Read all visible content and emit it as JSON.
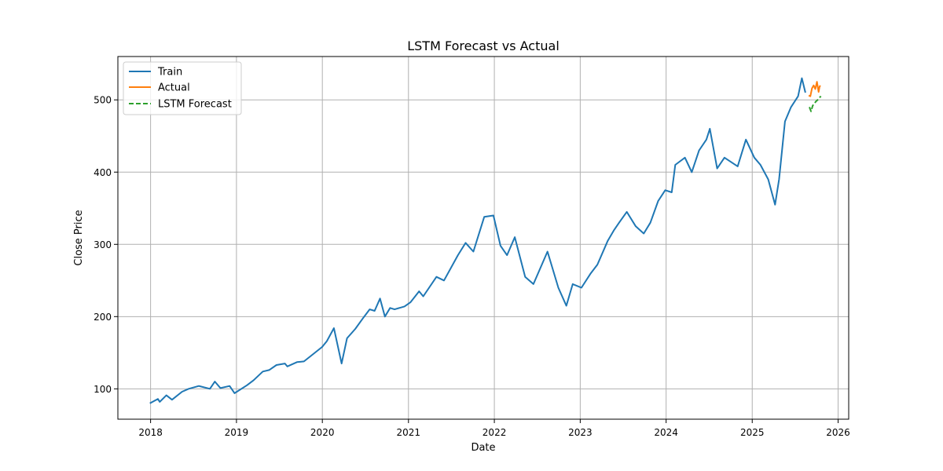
{
  "chart_data": {
    "type": "line",
    "title": "LSTM Forecast vs Actual",
    "xlabel": "Date",
    "ylabel": "Close Price",
    "x_axis": {
      "type": "date",
      "range": [
        "2017-08-15",
        "2026-02-15"
      ],
      "tick_labels": [
        "2018",
        "2019",
        "2020",
        "2021",
        "2022",
        "2023",
        "2024",
        "2025",
        "2026"
      ],
      "tick_dates": [
        "2018-01-01",
        "2019-01-01",
        "2020-01-01",
        "2021-01-01",
        "2022-01-01",
        "2023-01-01",
        "2024-01-01",
        "2025-01-01",
        "2026-01-01"
      ]
    },
    "y_axis": {
      "range": [
        58,
        560
      ],
      "ticks": [
        100,
        200,
        300,
        400,
        500
      ],
      "tick_labels": [
        "100",
        "200",
        "300",
        "400",
        "500"
      ]
    },
    "grid": true,
    "legend": {
      "placement": "top-left",
      "entries": [
        {
          "label": "Train",
          "color": "#1f77b4",
          "style": "solid"
        },
        {
          "label": "Actual",
          "color": "#ff7f0e",
          "style": "solid"
        },
        {
          "label": "LSTM Forecast",
          "color": "#2ca02c",
          "style": "dashed"
        }
      ]
    },
    "series": [
      {
        "name": "Train",
        "color": "#1f77b4",
        "style": "solid",
        "x": [
          "2017-12-29",
          "2018-02-01",
          "2018-02-09",
          "2018-03-09",
          "2018-04-02",
          "2018-05-15",
          "2018-06-12",
          "2018-07-25",
          "2018-09-10",
          "2018-10-01",
          "2018-10-25",
          "2018-12-03",
          "2018-12-24",
          "2019-02-15",
          "2019-03-15",
          "2019-04-23",
          "2019-05-20",
          "2019-06-20",
          "2019-07-26",
          "2019-08-05",
          "2019-09-15",
          "2019-10-15",
          "2019-11-15",
          "2019-12-31",
          "2020-01-20",
          "2020-02-19",
          "2020-03-23",
          "2020-04-15",
          "2020-05-20",
          "2020-06-20",
          "2020-07-20",
          "2020-08-10",
          "2020-09-02",
          "2020-09-23",
          "2020-10-15",
          "2020-11-03",
          "2020-12-15",
          "2021-01-10",
          "2021-02-15",
          "2021-03-05",
          "2021-04-30",
          "2021-06-01",
          "2021-07-30",
          "2021-09-01",
          "2021-10-04",
          "2021-11-19",
          "2021-12-28",
          "2022-01-27",
          "2022-02-24",
          "2022-03-29",
          "2022-05-12",
          "2022-06-16",
          "2022-08-15",
          "2022-09-30",
          "2022-11-03",
          "2022-11-30",
          "2023-01-06",
          "2023-02-15",
          "2023-03-15",
          "2023-04-28",
          "2023-05-25",
          "2023-06-15",
          "2023-07-18",
          "2023-08-25",
          "2023-09-28",
          "2023-10-26",
          "2023-11-28",
          "2023-12-28",
          "2024-01-25",
          "2024-02-09",
          "2024-03-21",
          "2024-04-19",
          "2024-05-20",
          "2024-06-20",
          "2024-07-05",
          "2024-08-05",
          "2024-09-05",
          "2024-10-31",
          "2024-12-05",
          "2025-01-10",
          "2025-02-05",
          "2025-03-10",
          "2025-04-08",
          "2025-04-25",
          "2025-05-20",
          "2025-06-15",
          "2025-07-15",
          "2025-07-31",
          "2025-08-15"
        ],
        "y": [
          80,
          86,
          82,
          91,
          85,
          96,
          100,
          104,
          100,
          110,
          101,
          104,
          94,
          105,
          112,
          124,
          126,
          133,
          135,
          131,
          137,
          138,
          146,
          158,
          166,
          184,
          135,
          170,
          183,
          197,
          210,
          208,
          225,
          200,
          212,
          210,
          214,
          220,
          235,
          228,
          255,
          250,
          285,
          302,
          290,
          338,
          340,
          298,
          285,
          310,
          255,
          245,
          290,
          240,
          215,
          245,
          240,
          260,
          272,
          305,
          320,
          330,
          345,
          325,
          315,
          330,
          360,
          375,
          372,
          410,
          420,
          400,
          430,
          445,
          460,
          405,
          420,
          408,
          445,
          420,
          410,
          390,
          355,
          390,
          470,
          490,
          505,
          530,
          510
        ]
      },
      {
        "name": "Actual",
        "color": "#ff7f0e",
        "style": "solid",
        "x": [
          "2025-08-29",
          "2025-09-05",
          "2025-09-12",
          "2025-09-19",
          "2025-09-26",
          "2025-10-03",
          "2025-10-10",
          "2025-10-14",
          "2025-10-17"
        ],
        "y": [
          506,
          505,
          516,
          520,
          515,
          525,
          511,
          518,
          520
        ]
      },
      {
        "name": "LSTM Forecast",
        "color": "#2ca02c",
        "style": "dashed",
        "x": [
          "2025-09-01",
          "2025-09-08",
          "2025-09-15",
          "2025-09-22",
          "2025-09-29",
          "2025-10-06",
          "2025-10-13",
          "2025-10-20"
        ],
        "y": [
          490,
          484,
          492,
          495,
          498,
          500,
          503,
          505
        ]
      }
    ]
  }
}
